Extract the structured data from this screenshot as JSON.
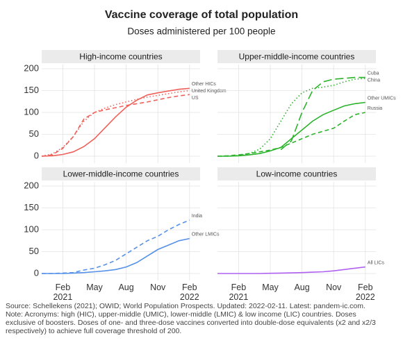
{
  "title": "Vaccine coverage of total population",
  "subtitle": "Doses administered per 100 people",
  "caption": [
    "Source: Schellekens (2021); OWID; World Population Prospects. Updated: 2022-02-11. Latest: pandem-ic.com.",
    "Note: Acronyms: high (HIC), upper-middle (UMIC), lower-middle (LMIC) & low income (LIC) countries. Doses",
    "exclusive of boosters. Doses of one- and three-dose vaccines converted into double-dose equivalents (x2 and x2/3",
    "respectively) to achieve full coverage threshold of 200."
  ],
  "chart_data": [
    {
      "type": "line",
      "title": "High-income countries",
      "x": [
        "2020-12",
        "2021-01",
        "2021-02",
        "2021-03",
        "2021-04",
        "2021-05",
        "2021-06",
        "2021-07",
        "2021-08",
        "2021-09",
        "2021-10",
        "2021-11",
        "2021-12",
        "2022-01",
        "2022-02"
      ],
      "xlim": [
        "2020-12",
        "2022-03"
      ],
      "xticks": [
        {
          "value": "2021-02",
          "label": "Feb 2021"
        },
        {
          "value": "2021-05",
          "label": "May"
        },
        {
          "value": "2021-08",
          "label": "Aug"
        },
        {
          "value": "2021-11",
          "label": "Nov"
        },
        {
          "value": "2022-02",
          "label": "Feb 2022"
        }
      ],
      "ylim": [
        0,
        200
      ],
      "yticks": [
        0,
        50,
        100,
        150,
        200
      ],
      "grid": true,
      "series": [
        {
          "name": "Other HICs",
          "color": "#f0605a",
          "linestyle": "solid",
          "values": [
            0,
            1,
            4,
            10,
            22,
            40,
            65,
            90,
            112,
            128,
            140,
            145,
            149,
            153,
            155
          ]
        },
        {
          "name": "United Kingdom",
          "color": "#f0605a",
          "linestyle": "dotted",
          "values": [
            0,
            5,
            20,
            45,
            80,
            100,
            110,
            118,
            124,
            130,
            135,
            139,
            143,
            147,
            150
          ]
        },
        {
          "name": "US",
          "color": "#f0605a",
          "linestyle": "dashed",
          "values": [
            0,
            3,
            18,
            45,
            85,
            100,
            106,
            111,
            116,
            120,
            124,
            129,
            134,
            138,
            141
          ]
        }
      ]
    },
    {
      "type": "line",
      "title": "Upper-middle-income countries",
      "x": [
        "2020-12",
        "2021-01",
        "2021-02",
        "2021-03",
        "2021-04",
        "2021-05",
        "2021-06",
        "2021-07",
        "2021-08",
        "2021-09",
        "2021-10",
        "2021-11",
        "2021-12",
        "2022-01",
        "2022-02"
      ],
      "xlim": [
        "2020-12",
        "2022-03"
      ],
      "xticks": [
        {
          "value": "2021-02",
          "label": "Feb 2021"
        },
        {
          "value": "2021-05",
          "label": "May"
        },
        {
          "value": "2021-08",
          "label": "Aug"
        },
        {
          "value": "2021-11",
          "label": "Nov"
        },
        {
          "value": "2022-02",
          "label": "Feb 2022"
        }
      ],
      "ylim": [
        0,
        200
      ],
      "yticks": [
        0,
        50,
        100,
        150,
        200
      ],
      "grid": true,
      "series": [
        {
          "name": "Cuba",
          "color": "#2ab32a",
          "linestyle": "longdash",
          "values": [
            null,
            null,
            null,
            null,
            null,
            null,
            15,
            35,
            100,
            150,
            170,
            176,
            178,
            180,
            180
          ]
        },
        {
          "name": "China",
          "color": "#2ab32a",
          "linestyle": "dotted",
          "values": [
            0,
            0,
            2,
            6,
            16,
            40,
            80,
            120,
            145,
            155,
            158,
            162,
            170,
            176,
            178
          ]
        },
        {
          "name": "Other UMICs",
          "color": "#2ab32a",
          "linestyle": "solid",
          "values": [
            0,
            0,
            1,
            3,
            6,
            12,
            20,
            40,
            60,
            80,
            95,
            105,
            115,
            120,
            123
          ]
        },
        {
          "name": "Russia",
          "color": "#2ab32a",
          "linestyle": "dashed",
          "values": [
            0,
            1,
            3,
            6,
            10,
            14,
            20,
            30,
            40,
            50,
            57,
            64,
            80,
            95,
            100
          ]
        }
      ]
    },
    {
      "type": "line",
      "title": "Lower-middle-income countries",
      "x": [
        "2020-12",
        "2021-01",
        "2021-02",
        "2021-03",
        "2021-04",
        "2021-05",
        "2021-06",
        "2021-07",
        "2021-08",
        "2021-09",
        "2021-10",
        "2021-11",
        "2021-12",
        "2022-01",
        "2022-02"
      ],
      "xlim": [
        "2020-12",
        "2022-03"
      ],
      "xticks": [
        {
          "value": "2021-02",
          "label": "Feb 2021"
        },
        {
          "value": "2021-05",
          "label": "May"
        },
        {
          "value": "2021-08",
          "label": "Aug"
        },
        {
          "value": "2021-11",
          "label": "Nov"
        },
        {
          "value": "2022-02",
          "label": "Feb 2022"
        }
      ],
      "ylim": [
        0,
        200
      ],
      "yticks": [
        0,
        50,
        100,
        150,
        200
      ],
      "grid": true,
      "series": [
        {
          "name": "India",
          "color": "#5590e8",
          "linestyle": "dashed",
          "values": [
            0,
            0,
            1,
            2,
            8,
            12,
            20,
            30,
            45,
            60,
            75,
            85,
            100,
            112,
            122
          ]
        },
        {
          "name": "Other LMICs",
          "color": "#5590e8",
          "linestyle": "solid",
          "values": [
            0,
            0,
            0,
            1,
            2,
            4,
            6,
            9,
            15,
            25,
            40,
            55,
            65,
            75,
            80
          ]
        }
      ]
    },
    {
      "type": "line",
      "title": "Low-income countries",
      "x": [
        "2020-12",
        "2021-01",
        "2021-02",
        "2021-03",
        "2021-04",
        "2021-05",
        "2021-06",
        "2021-07",
        "2021-08",
        "2021-09",
        "2021-10",
        "2021-11",
        "2021-12",
        "2022-01",
        "2022-02"
      ],
      "xlim": [
        "2020-12",
        "2022-03"
      ],
      "xticks": [
        {
          "value": "2021-02",
          "label": "Feb 2021"
        },
        {
          "value": "2021-05",
          "label": "May"
        },
        {
          "value": "2021-08",
          "label": "Aug"
        },
        {
          "value": "2021-11",
          "label": "Nov"
        },
        {
          "value": "2022-02",
          "label": "Feb 2022"
        }
      ],
      "ylim": [
        0,
        200
      ],
      "yticks": [
        0,
        50,
        100,
        150,
        200
      ],
      "grid": true,
      "series": [
        {
          "name": "All LICs",
          "color": "#b060f0",
          "linestyle": "solid",
          "values": [
            0,
            0,
            0,
            0,
            0,
            0.5,
            1,
            1.5,
            2,
            3,
            4,
            6,
            9,
            12,
            15
          ]
        }
      ]
    }
  ]
}
